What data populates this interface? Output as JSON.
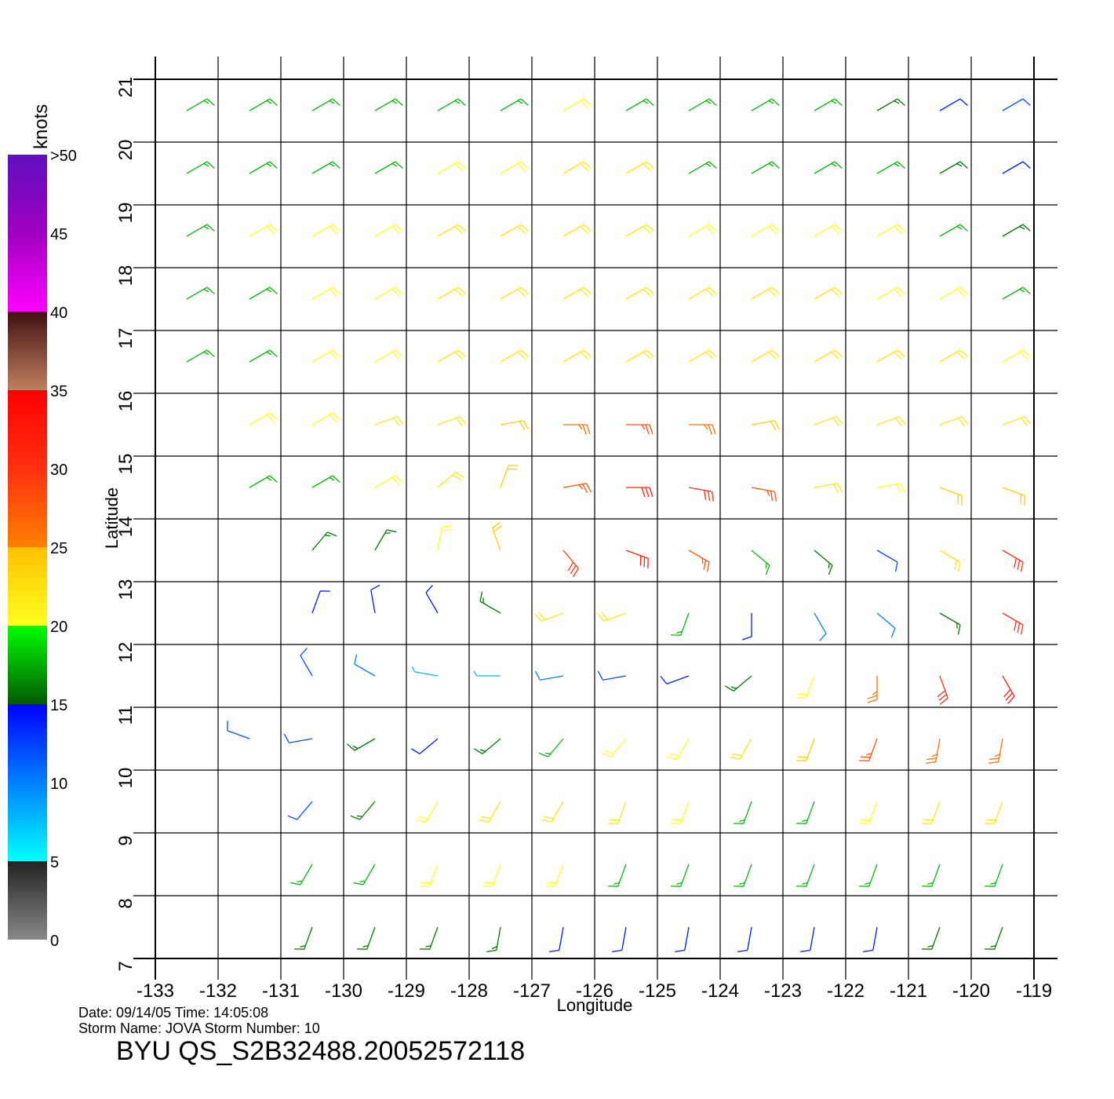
{
  "chart_data": {
    "type": "wind-barb",
    "x_label": "Longitude",
    "y_label": "Latitude",
    "xlim": [
      -133,
      -119
    ],
    "ylim": [
      7,
      21
    ],
    "xticks": [
      -133,
      -132,
      -131,
      -130,
      -129,
      -128,
      -127,
      -126,
      -125,
      -124,
      -123,
      -122,
      -121,
      -120,
      -119
    ],
    "yticks": [
      7,
      8,
      9,
      10,
      11,
      12,
      13,
      14,
      15,
      16,
      17,
      18,
      19,
      20,
      21
    ],
    "grid": true,
    "lons": [
      -132.5,
      -131.5,
      -130.5,
      -129.5,
      -128.5,
      -127.5,
      -126.5,
      -125.5,
      -124.5,
      -123.5,
      -122.5,
      -121.5,
      -120.5,
      -119.5
    ],
    "lats": [
      20.5,
      19.5,
      18.5,
      17.5,
      16.5,
      15.5,
      14.5,
      13.5,
      12.5,
      11.5,
      10.5,
      9.5,
      8.5,
      7.5
    ],
    "speed": [
      [
        18,
        18,
        18,
        18,
        18,
        18,
        20,
        18,
        18,
        18,
        18,
        16,
        14,
        12
      ],
      [
        18,
        18,
        18,
        18,
        20,
        20,
        22,
        22,
        18,
        18,
        18,
        18,
        16,
        14
      ],
      [
        18,
        20,
        20,
        20,
        22,
        22,
        22,
        22,
        20,
        20,
        20,
        20,
        18,
        16
      ],
      [
        18,
        18,
        20,
        20,
        22,
        22,
        22,
        22,
        22,
        22,
        22,
        20,
        20,
        18
      ],
      [
        18,
        18,
        20,
        20,
        22,
        22,
        22,
        22,
        22,
        22,
        22,
        22,
        22,
        20
      ],
      [
        null,
        20,
        20,
        22,
        22,
        24,
        26,
        28,
        26,
        24,
        22,
        22,
        22,
        22
      ],
      [
        null,
        18,
        18,
        20,
        22,
        24,
        28,
        32,
        30,
        28,
        22,
        20,
        24,
        24
      ],
      [
        null,
        null,
        16,
        16,
        20,
        24,
        30,
        32,
        28,
        18,
        16,
        12,
        22,
        30
      ],
      [
        null,
        null,
        14,
        14,
        14,
        16,
        22,
        22,
        18,
        14,
        10,
        10,
        16,
        30
      ],
      [
        null,
        null,
        12,
        10,
        8,
        8,
        10,
        12,
        14,
        16,
        20,
        26,
        30,
        32
      ],
      [
        null,
        12,
        12,
        16,
        14,
        16,
        18,
        20,
        20,
        22,
        24,
        28,
        26,
        26
      ],
      [
        null,
        null,
        12,
        16,
        20,
        22,
        22,
        22,
        20,
        18,
        18,
        20,
        22,
        22
      ],
      [
        null,
        null,
        18,
        18,
        20,
        20,
        20,
        18,
        18,
        18,
        18,
        18,
        18,
        18
      ],
      [
        null,
        null,
        16,
        16,
        16,
        16,
        14,
        14,
        14,
        14,
        14,
        14,
        16,
        16
      ]
    ],
    "direction": [
      [
        60,
        60,
        60,
        60,
        60,
        60,
        60,
        60,
        60,
        60,
        60,
        60,
        60,
        60
      ],
      [
        60,
        60,
        60,
        60,
        60,
        60,
        60,
        60,
        60,
        60,
        60,
        60,
        60,
        60
      ],
      [
        60,
        60,
        60,
        60,
        60,
        60,
        60,
        60,
        60,
        60,
        60,
        60,
        60,
        60
      ],
      [
        60,
        60,
        60,
        60,
        60,
        60,
        60,
        60,
        60,
        60,
        60,
        60,
        60,
        60
      ],
      [
        60,
        60,
        60,
        60,
        60,
        60,
        60,
        60,
        60,
        60,
        60,
        60,
        60,
        60
      ],
      [
        null,
        60,
        60,
        70,
        70,
        80,
        90,
        90,
        90,
        80,
        70,
        70,
        70,
        70
      ],
      [
        null,
        60,
        60,
        60,
        50,
        20,
        80,
        90,
        100,
        100,
        80,
        80,
        110,
        110
      ],
      [
        null,
        null,
        40,
        30,
        10,
        340,
        140,
        110,
        120,
        130,
        130,
        120,
        120,
        120
      ],
      [
        null,
        null,
        20,
        350,
        330,
        300,
        250,
        250,
        200,
        180,
        150,
        130,
        120,
        120
      ],
      [
        null,
        null,
        330,
        300,
        280,
        270,
        260,
        260,
        250,
        230,
        200,
        180,
        160,
        150
      ],
      [
        null,
        290,
        260,
        240,
        230,
        230,
        220,
        220,
        210,
        210,
        200,
        200,
        190,
        190
      ],
      [
        null,
        null,
        220,
        220,
        210,
        210,
        210,
        200,
        200,
        200,
        200,
        200,
        200,
        200
      ],
      [
        null,
        null,
        210,
        210,
        200,
        200,
        200,
        200,
        200,
        200,
        200,
        200,
        200,
        200
      ],
      [
        null,
        null,
        200,
        200,
        200,
        190,
        190,
        190,
        190,
        190,
        190,
        190,
        200,
        200
      ]
    ],
    "colorbar": {
      "title": "knots",
      "lim": [
        0,
        50
      ],
      "ticks": [
        0,
        5,
        10,
        15,
        20,
        25,
        30,
        35,
        40,
        45,
        {
          "value": 50,
          "label": ">50"
        }
      ],
      "stops": [
        [
          0,
          "#888888"
        ],
        [
          5,
          "#222222"
        ],
        [
          5,
          "#00ffff"
        ],
        [
          10,
          "#0080ff"
        ],
        [
          15,
          "#0000ff"
        ],
        [
          15,
          "#005a00"
        ],
        [
          20,
          "#00ff00"
        ],
        [
          20,
          "#ffff20"
        ],
        [
          25,
          "#ffc000"
        ],
        [
          25,
          "#ff8000"
        ],
        [
          30,
          "#ff3010"
        ],
        [
          35,
          "#ff0000"
        ],
        [
          35,
          "#c08060"
        ],
        [
          40,
          "#401010"
        ],
        [
          40,
          "#ff00ff"
        ],
        [
          45,
          "#a000c0"
        ],
        [
          50,
          "#6010c0"
        ]
      ]
    },
    "date_line": "Date:  09/14/05   Time:  14:05:08",
    "storm_line": "Storm  Name:  JOVA   Storm  Number:  10",
    "file_title": "BYU  QS_S2B32488.20052572118"
  }
}
